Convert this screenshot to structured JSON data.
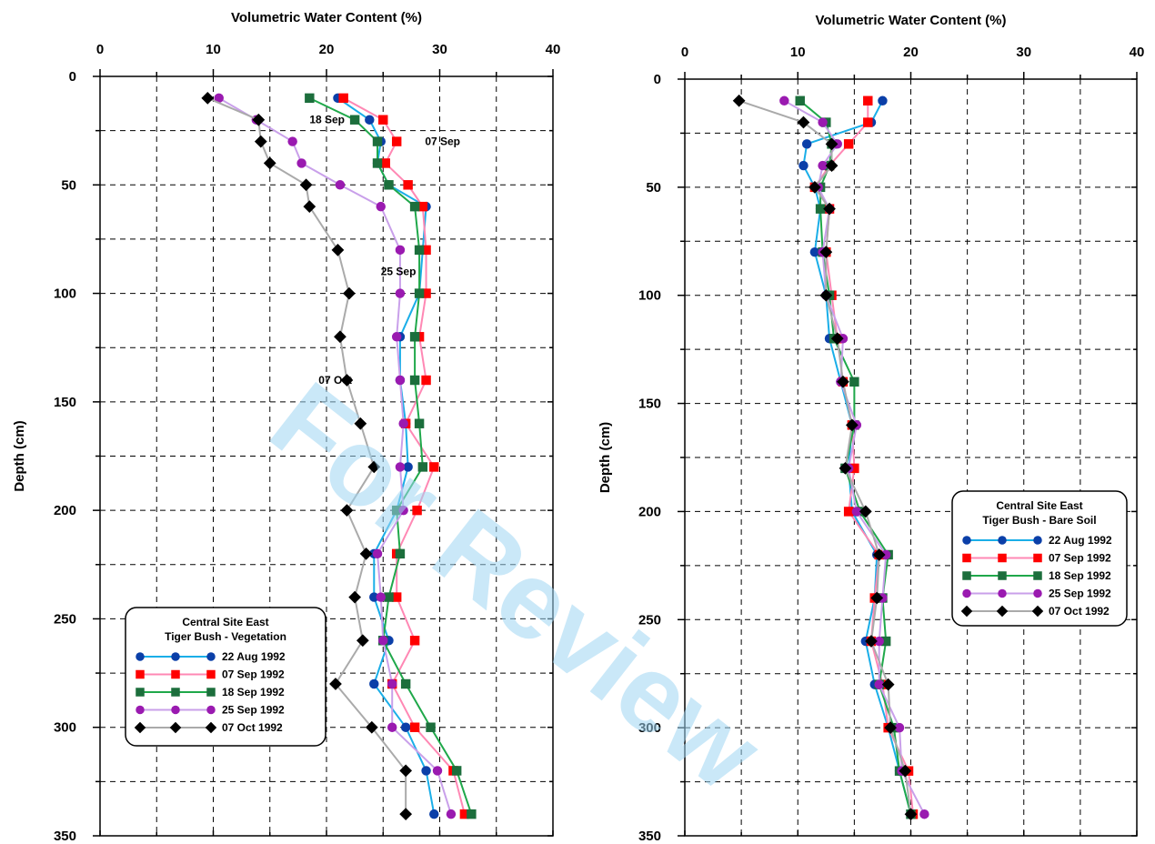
{
  "watermark": "For Review",
  "chart_data": [
    {
      "type": "line",
      "xlabel": "Volumetric Water Content (%)",
      "ylabel": "Depth (cm)",
      "xlim": [
        0,
        40
      ],
      "ylim": [
        0,
        350
      ],
      "x_axis_position": "top",
      "y_inverted": true,
      "grid": true,
      "x_ticks": [
        0,
        10,
        20,
        30,
        40
      ],
      "y_ticks": [
        0,
        50,
        100,
        150,
        200,
        250,
        300,
        350
      ],
      "depths": [
        10,
        20,
        30,
        40,
        50,
        60,
        80,
        100,
        120,
        140,
        160,
        180,
        200,
        220,
        240,
        260,
        280,
        300,
        320,
        340
      ],
      "legend": {
        "title_lines": [
          "Central Site East",
          "Tiger Bush - Vegetation"
        ],
        "position": "lower-left"
      },
      "annotations": [
        {
          "text": "18 Sep",
          "x": 18.5,
          "y": 20
        },
        {
          "text": "07 Sep",
          "x": 28.7,
          "y": 30
        },
        {
          "text": "25 Sep",
          "x": 24.8,
          "y": 90
        },
        {
          "text": "07 Oct",
          "x": 19.3,
          "y": 140
        }
      ],
      "series": [
        {
          "name": "22 Aug 1992",
          "color": "#1aaee8",
          "marker_color": "#0b3fa8",
          "marker": "circle",
          "values": [
            21,
            23.8,
            24.8,
            24.5,
            25.5,
            28.8,
            28.5,
            28.2,
            26.5,
            26.5,
            27,
            27.2,
            26.2,
            24.2,
            24.2,
            25.5,
            24.2,
            27,
            28.8,
            29.5
          ]
        },
        {
          "name": "07 Sep 1992",
          "color": "#ff88b4",
          "marker_color": "#ff0000",
          "marker": "square",
          "values": [
            21.5,
            25,
            26.2,
            25.2,
            27.2,
            28.5,
            28.8,
            28.8,
            28.2,
            28.8,
            27,
            29.5,
            28,
            26.2,
            26.2,
            27.8,
            25.8,
            27.8,
            31.2,
            32.2
          ]
        },
        {
          "name": "18 Sep 1992",
          "color": "#1fa84a",
          "marker_color": "#1c6e3c",
          "marker": "square",
          "values": [
            18.5,
            22.5,
            24.5,
            24.5,
            25.5,
            27.8,
            28.2,
            28.2,
            27.8,
            27.8,
            28.2,
            28.5,
            26.2,
            26.5,
            25.5,
            25,
            27,
            29.2,
            31.5,
            32.8
          ]
        },
        {
          "name": "25 Sep 1992",
          "color": "#c9a0ea",
          "marker_color": "#9a1ab0",
          "marker": "circle",
          "values": [
            10.5,
            13.8,
            17,
            17.8,
            21.2,
            24.8,
            26.5,
            26.5,
            26.2,
            26.5,
            26.8,
            26.5,
            26.8,
            24.5,
            24.8,
            25,
            25.8,
            25.8,
            29.8,
            31
          ]
        },
        {
          "name": "07 Oct 1992",
          "color": "#aaaaaa",
          "marker_color": "#000000",
          "marker": "diamond",
          "values": [
            9.5,
            14,
            14.2,
            15,
            18.2,
            18.5,
            21,
            22,
            21.2,
            21.8,
            23,
            24.2,
            21.8,
            23.5,
            22.5,
            23.2,
            20.8,
            24,
            27,
            27
          ]
        }
      ]
    },
    {
      "type": "line",
      "xlabel": "Volumetric Water Content (%)",
      "ylabel": "Depth (cm)",
      "xlim": [
        0,
        40
      ],
      "ylim": [
        0,
        350
      ],
      "x_axis_position": "top",
      "y_inverted": true,
      "grid": true,
      "x_ticks": [
        0,
        10,
        20,
        30,
        40
      ],
      "y_ticks": [
        0,
        50,
        100,
        150,
        200,
        250,
        300,
        350
      ],
      "depths": [
        10,
        20,
        30,
        40,
        50,
        60,
        80,
        100,
        120,
        140,
        160,
        180,
        200,
        220,
        240,
        260,
        280,
        300,
        320,
        340
      ],
      "legend": {
        "title_lines": [
          "Central Site East",
          "Tiger Bush - Bare Soil"
        ],
        "position": "right"
      },
      "annotations": [],
      "series": [
        {
          "name": "22 Aug 1992",
          "color": "#1aaee8",
          "marker_color": "#0b3fa8",
          "marker": "circle",
          "values": [
            17.5,
            16.5,
            10.8,
            10.5,
            11.5,
            12,
            11.5,
            12.5,
            12.8,
            13.8,
            14.8,
            14.5,
            14.8,
            17,
            16.8,
            16,
            16.8,
            18,
            19,
            20
          ]
        },
        {
          "name": "07 Sep 1992",
          "color": "#ff88b4",
          "marker_color": "#ff0000",
          "marker": "square",
          "values": [
            16.2,
            16.2,
            14.5,
            12.8,
            11.5,
            12.8,
            12.5,
            13,
            13.5,
            14,
            14.8,
            15,
            14.5,
            17.2,
            16.8,
            16.5,
            17.5,
            18,
            19.8,
            20.2
          ]
        },
        {
          "name": "18 Sep 1992",
          "color": "#1fa84a",
          "marker_color": "#1c6e3c",
          "marker": "square",
          "values": [
            10.2,
            12.5,
            13,
            12.8,
            12,
            12,
            12.2,
            12.8,
            13.2,
            15,
            15,
            14.2,
            15.5,
            18,
            17.5,
            17.8,
            17.2,
            18.5,
            19,
            20
          ]
        },
        {
          "name": "25 Sep 1992",
          "color": "#c9a0ea",
          "marker_color": "#9a1ab0",
          "marker": "circle",
          "values": [
            8.8,
            12.2,
            13.5,
            12.2,
            11.8,
            12.8,
            12.2,
            12.5,
            14,
            13.8,
            15.2,
            14.5,
            15.2,
            17.8,
            17.5,
            17.2,
            17.2,
            19,
            19.2,
            21.2
          ]
        },
        {
          "name": "07 Oct 1992",
          "color": "#aaaaaa",
          "marker_color": "#000000",
          "marker": "diamond",
          "values": [
            4.8,
            10.5,
            13,
            13,
            11.5,
            12.8,
            12.5,
            12.5,
            13.5,
            14,
            14.8,
            14.2,
            16,
            17.2,
            17,
            16.5,
            18,
            18.2,
            19.5,
            20
          ]
        }
      ]
    }
  ]
}
